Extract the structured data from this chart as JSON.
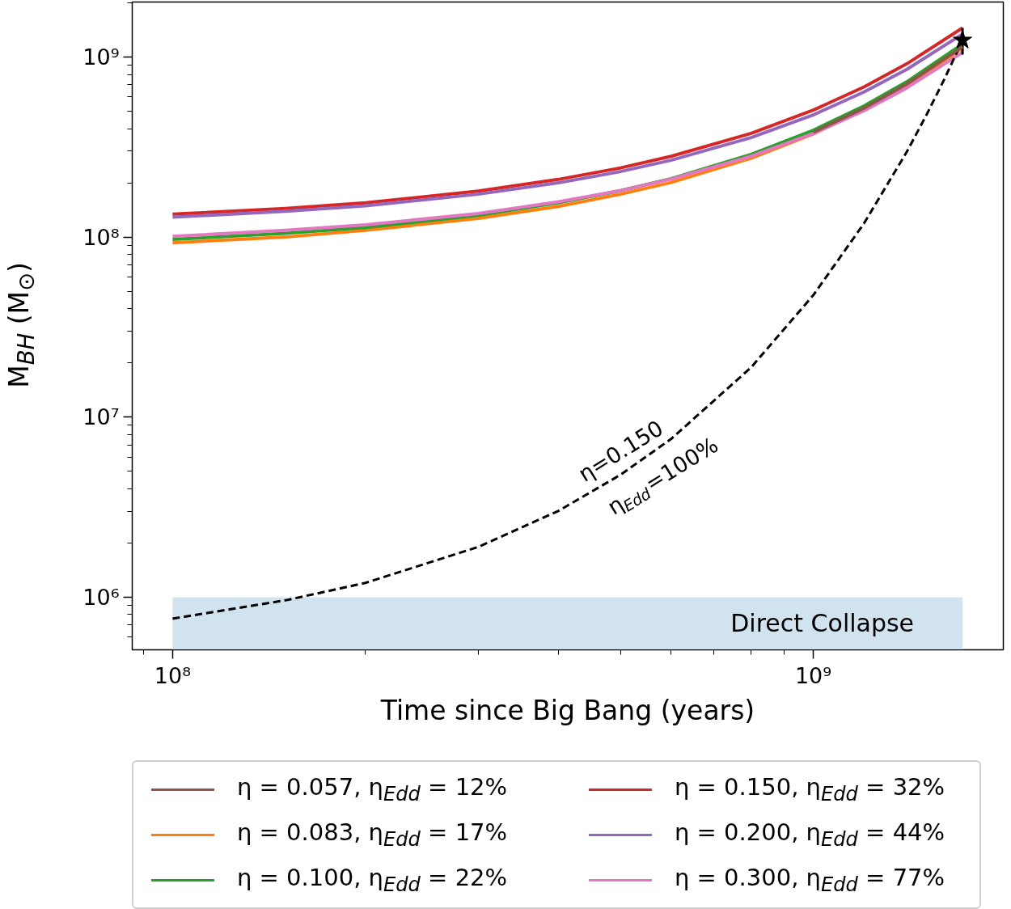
{
  "chart_data": {
    "type": "line",
    "xlabel": "Time since Big Bang (years)",
    "ylabel": "M$_{BH}$ (M$_{⊙}$)",
    "x": [
      100000000.0,
      150000000.0,
      200000000.0,
      300000000.0,
      400000000.0,
      500000000.0,
      600000000.0,
      800000000.0,
      1000000000.0,
      1200000000.0,
      1400000000.0,
      1710000000.0
    ],
    "series": [
      {
        "name": "η = 0.057, η$_{Edd}$ = 12%",
        "color": "#8c564b",
        "values": [
          null,
          null,
          null,
          null,
          null,
          null,
          null,
          null,
          382000000.0,
          520000000.0,
          709000000.0,
          1140000000.0
        ]
      },
      {
        "name": "η = 0.083, η$_{Edd}$ = 17%",
        "color": "#ff7f0e",
        "values": [
          93000000.0,
          100000000.0,
          109000000.0,
          127000000.0,
          148000000.0,
          173000000.0,
          201000000.0,
          274000000.0,
          374000000.0,
          509000000.0,
          694000000.0,
          1120000000.0
        ]
      },
      {
        "name": "η = 0.100, η$_{Edd}$ = 22%",
        "color": "#2ca02c",
        "values": [
          97000000.0,
          105000000.0,
          113000000.0,
          132000000.0,
          155000000.0,
          181000000.0,
          211000000.0,
          288000000.0,
          392000000.0,
          535000000.0,
          729000000.0,
          1180000000.0
        ]
      },
      {
        "name": "η = 0.150, η$_{Edd}$ = 32%",
        "color": "#d62728",
        "values": [
          134000000.0,
          144000000.0,
          155000000.0,
          180000000.0,
          209000000.0,
          242000000.0,
          281000000.0,
          377000000.0,
          507000000.0,
          682000000.0,
          917000000.0,
          1450000000.0
        ]
      },
      {
        "name": "η = 0.200, η$_{Edd}$ = 44%",
        "color": "#9467bd",
        "values": [
          129000000.0,
          139000000.0,
          149000000.0,
          173000000.0,
          200000000.0,
          231000000.0,
          267000000.0,
          357000000.0,
          477000000.0,
          639000000.0,
          854000000.0,
          1340000000.0
        ]
      },
      {
        "name": "η = 0.300, η$_{Edd}$ = 77%",
        "color": "#e377c2",
        "values": [
          101000000.0,
          109000000.0,
          117000000.0,
          135000000.0,
          157000000.0,
          181000000.0,
          210000000.0,
          281000000.0,
          376000000.0,
          503000000.0,
          674000000.0,
          1060000000.0
        ]
      },
      {
        "color": "#000000",
        "line_style": "dashed",
        "x": [
          100000000.0,
          150000000.0,
          200000000.0,
          300000000.0,
          400000000.0,
          500000000.0,
          600000000.0,
          800000000.0,
          1000000000.0,
          1200000000.0,
          1400000000.0,
          1500000000.0,
          1600000000.0,
          1710000000.0
        ],
        "values": [
          760000.0,
          960000.0,
          1200000.0,
          1900000.0,
          3010000.0,
          4780000.0,
          7560000.0,
          18900000.0,
          47500000.0,
          119000000.0,
          298000000.0,
          472000000.0,
          747000000.0,
          1240000000.0
        ]
      },
      {
        "type": "scatter",
        "marker": "star",
        "color": "#000000",
        "x": [
          1710000000.0
        ],
        "values": [
          1240000000.0
        ],
        "errors": [
          210000000.0
        ]
      }
    ],
    "annotations": [
      "η=0.150",
      "η$_{Edd}$=100%"
    ],
    "bands": [
      {
        "axis": "y",
        "from": 510000.0,
        "to": 1000000.0,
        "label": "Direct Collapse",
        "color": "#d2e3f0"
      }
    ],
    "log": "xy",
    "xlim": [
      86500000.0,
      1980000000.0
    ],
    "ylim": [
      510000.0,
      2020000000.0
    ],
    "xticks": [
      {
        "value": 100000000.0,
        "label": "10⁸"
      },
      {
        "value": 1000000000.0,
        "label": "10⁹"
      }
    ],
    "yticks": [
      {
        "value": 1000000.0,
        "label": "10⁶"
      },
      {
        "value": 10000000.0,
        "label": "10⁷"
      },
      {
        "value": 100000000.0,
        "label": "10⁸"
      },
      {
        "value": 1000000000.0,
        "label": "10⁹"
      }
    ],
    "legend": "bottom"
  }
}
